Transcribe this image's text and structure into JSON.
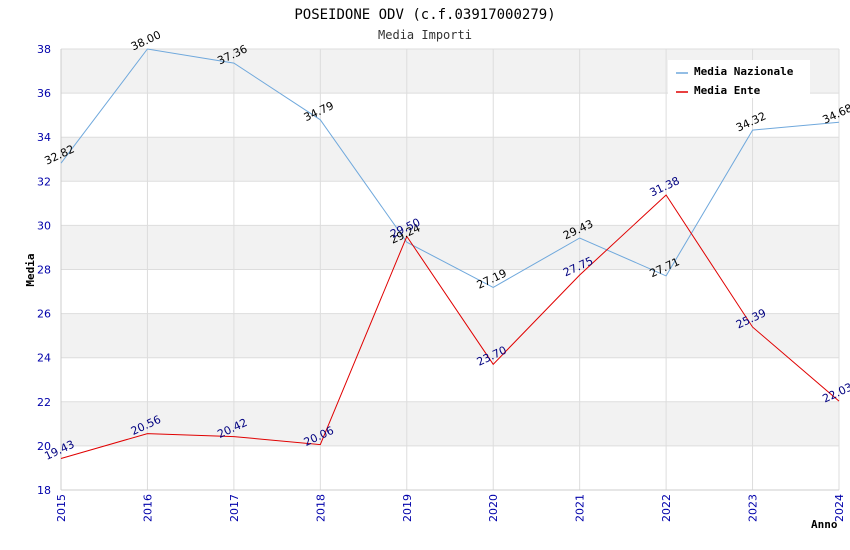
{
  "chart_data": {
    "type": "line",
    "title": "POSEIDONE ODV (c.f.03917000279)",
    "subtitle": "Media Importi",
    "xlabel": "Anno",
    "ylabel": "Media",
    "x": [
      "2015",
      "2016",
      "2017",
      "2018",
      "2019",
      "2020",
      "2021",
      "2022",
      "2023",
      "2024"
    ],
    "ylim": [
      18,
      38
    ],
    "yticks": [
      18,
      20,
      22,
      24,
      26,
      28,
      30,
      32,
      34,
      36,
      38
    ],
    "grid": true,
    "legend_position": "top-right",
    "series": [
      {
        "name": "Media Nazionale",
        "color": "#6fa8dc",
        "label_color": "#000000",
        "values": [
          32.82,
          38.0,
          37.36,
          34.79,
          29.24,
          27.19,
          29.43,
          27.71,
          34.32,
          34.68
        ],
        "labels": [
          "32.82",
          "38.00",
          "37.36",
          "34.79",
          "29.24",
          "27.19",
          "29.43",
          "27.71",
          "34.32",
          "34.68"
        ]
      },
      {
        "name": "Media Ente",
        "color": "#e00000",
        "label_color": "#000080",
        "values": [
          19.43,
          20.56,
          20.42,
          20.06,
          29.5,
          23.7,
          27.75,
          31.38,
          25.39,
          22.03
        ],
        "labels": [
          "19.43",
          "20.56",
          "20.42",
          "20.06",
          "29.50",
          "23.70",
          "27.75",
          "31.38",
          "25.39",
          "22.03"
        ]
      }
    ]
  }
}
